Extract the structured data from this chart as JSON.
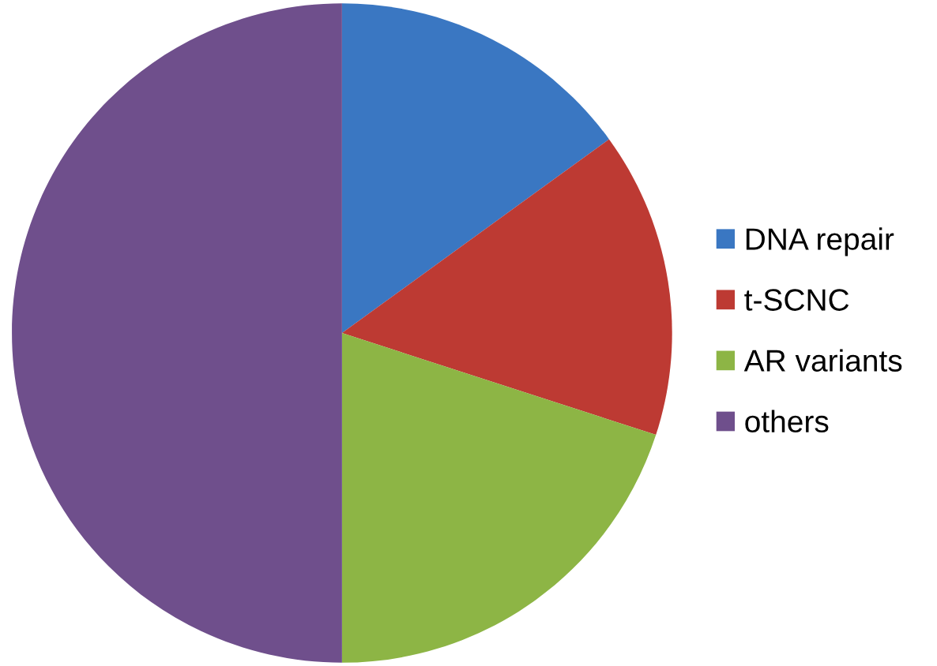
{
  "chart_data": {
    "type": "pie",
    "categories": [
      "DNA repair",
      "t-SCNC",
      "AR variants",
      "others"
    ],
    "values": [
      15,
      15,
      20,
      50
    ],
    "colors": [
      "#3a77c2",
      "#bd3a33",
      "#8db545",
      "#6f4f8c"
    ],
    "legend": "right"
  }
}
